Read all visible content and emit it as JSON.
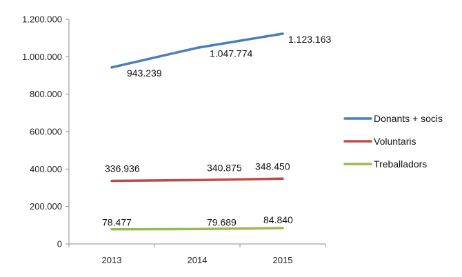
{
  "chart_data": {
    "type": "line",
    "title": "",
    "xlabel": "",
    "ylabel": "",
    "categories": [
      "2013",
      "2014",
      "2015"
    ],
    "ylim": [
      0,
      1200000
    ],
    "yticks": [
      0,
      200000,
      400000,
      600000,
      800000,
      1000000,
      1200000
    ],
    "ytick_labels": [
      "0",
      "200.000",
      "400.000",
      "600.000",
      "800.000",
      "1.000.000",
      "1.200.000"
    ],
    "grid": false,
    "legend_position": "right",
    "series": [
      {
        "name": "Donants + socis",
        "values": [
          943239,
          1047774,
          1123163
        ],
        "labels": [
          "943.239",
          "1.047.774",
          "1.123.163"
        ],
        "color": "#4a7ebb"
      },
      {
        "name": "Voluntaris",
        "values": [
          336936,
          340875,
          348450
        ],
        "labels": [
          "336.936",
          "340.875",
          "348.450"
        ],
        "color": "#be4b48"
      },
      {
        "name": "Treballadors",
        "values": [
          78477,
          79689,
          84840
        ],
        "labels": [
          "78.477",
          "79.689",
          "84.840"
        ],
        "color": "#98b954"
      }
    ]
  }
}
